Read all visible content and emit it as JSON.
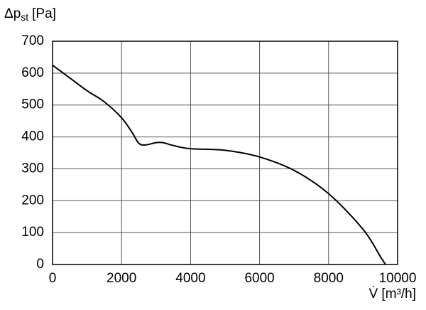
{
  "chart_data": {
    "type": "line",
    "y_label": [
      "Δp",
      "st",
      "[Pa]"
    ],
    "x_label": "V̇ [m³/h]",
    "x": [
      0,
      500,
      1000,
      1500,
      2000,
      2300,
      2500,
      2700,
      3000,
      3200,
      3500,
      4000,
      5000,
      6000,
      7000,
      8000,
      9000,
      9500,
      9650
    ],
    "series": [
      {
        "color": "#000000",
        "values": [
          625,
          585,
          545,
          510,
          460,
          415,
          380,
          375,
          382,
          382,
          373,
          363,
          358,
          337,
          295,
          222,
          110,
          25,
          0
        ]
      }
    ],
    "xlim": [
      0,
      10000
    ],
    "xticks": [
      0,
      2000,
      4000,
      6000,
      8000,
      10000
    ],
    "ylim": [
      0,
      700
    ],
    "yticks": [
      0,
      100,
      200,
      300,
      400,
      500,
      600,
      700
    ],
    "grid": true
  }
}
